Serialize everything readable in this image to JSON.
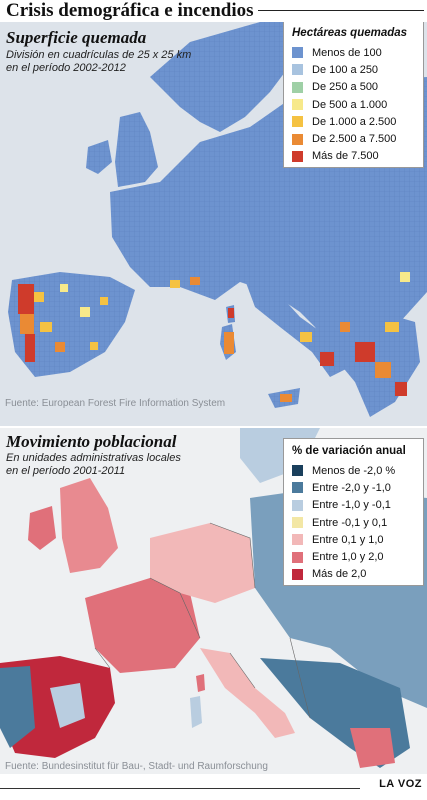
{
  "header": {
    "title": "Crisis demográfica e incendios"
  },
  "map_burned": {
    "subtitle": "Superficie quemada",
    "description_line1": "División en cuadrículas de 25 x 25 km",
    "description_line2": "en el período 2002-2012",
    "source": "Fuente: European Forest Fire Information System",
    "legend": {
      "title": "Hectáreas quemadas",
      "items": [
        {
          "label": "Menos de 100",
          "color": "#6d93cf"
        },
        {
          "label": "De 100 a 250",
          "color": "#a8c3df"
        },
        {
          "label": "De 250 a 500",
          "color": "#9fd0a6"
        },
        {
          "label": "De 500 a 1.000",
          "color": "#f7e98a"
        },
        {
          "label": "De 1.000 a 2.500",
          "color": "#f5c242"
        },
        {
          "label": "De 2.500 a 7.500",
          "color": "#ea8a34"
        },
        {
          "label": "Más de 7.500",
          "color": "#cf3b2b"
        }
      ]
    }
  },
  "map_population": {
    "subtitle": "Movimiento poblacional",
    "description_line1": "En unidades administrativas locales",
    "description_line2": "en el período 2001-2011",
    "source": "Fuente: Bundesinstitut für Bau-, Stadt- und Raumforschung",
    "legend": {
      "title": "% de variación anual",
      "items": [
        {
          "label": "Menos de -2,0 %",
          "color": "#1a3f5c"
        },
        {
          "label": "Entre -2,0 y -1,0",
          "color": "#4b7a9c"
        },
        {
          "label": "Entre -1,0 y -0,1",
          "color": "#b9cde0"
        },
        {
          "label": "Entre -0,1 y 0,1",
          "color": "#f3e7a5"
        },
        {
          "label": "Entre 0,1 y 1,0",
          "color": "#f2b8b8"
        },
        {
          "label": "Entre 1,0 y 2,0",
          "color": "#e0707a"
        },
        {
          "label": "Más de 2,0",
          "color": "#c0283c"
        }
      ]
    }
  },
  "footer": {
    "brand": "LA VOZ"
  }
}
